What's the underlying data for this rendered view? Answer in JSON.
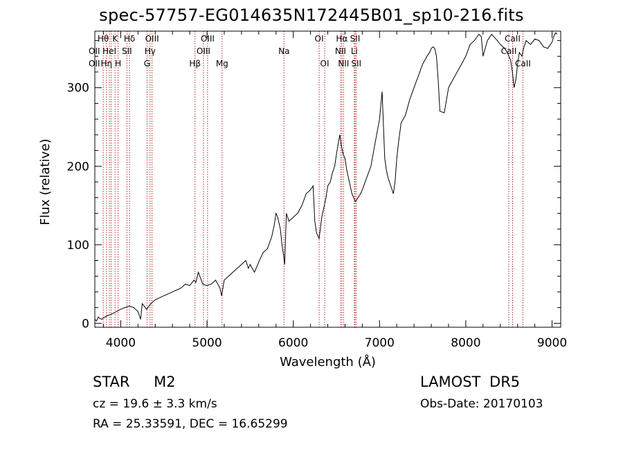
{
  "header": {
    "title": "spec-57757-EG014635N172445B01_sp10-216.fits"
  },
  "info": {
    "object": "STAR    M2",
    "survey": "LAMOST  DR5",
    "cz": "cz = 19.6 ± 3.3 km/s",
    "obs_date": "Obs-Date: 20170103",
    "radec": "RA =  25.33591, DEC =  16.65299"
  },
  "chart_data": {
    "type": "line",
    "title": "spec-57757-EG014635N172445B01_sp10-216.fits",
    "xlabel": "Wavelength (Å)",
    "ylabel": "Flux (relative)",
    "xlim": [
      3700,
      9100
    ],
    "ylim": [
      -5,
      372
    ],
    "xticks": [
      4000,
      5000,
      6000,
      7000,
      8000,
      9000
    ],
    "yticks": [
      0,
      100,
      200,
      300
    ],
    "grid": false,
    "line_color": "#000000",
    "marker_color": "#b22222",
    "series": [
      {
        "x": [
          3700,
          3720,
          3740,
          3760,
          3780,
          3800,
          3850,
          3900,
          3950,
          4000,
          4050,
          4100,
          4150,
          4200,
          4230,
          4250,
          4300,
          4350,
          4400,
          4500,
          4600,
          4700,
          4750,
          4800,
          4850,
          4870,
          4900,
          4950,
          5000,
          5050,
          5100,
          5150,
          5170,
          5200,
          5250,
          5300,
          5350,
          5400,
          5450,
          5480,
          5500,
          5550,
          5600,
          5650,
          5700,
          5750,
          5780,
          5800,
          5820,
          5850,
          5870,
          5890,
          5900,
          5920,
          5950,
          6000,
          6050,
          6100,
          6150,
          6200,
          6230,
          6250,
          6270,
          6300,
          6330,
          6380,
          6400,
          6430,
          6450,
          6480,
          6500,
          6520,
          6540,
          6560,
          6580,
          6600,
          6620,
          6650,
          6680,
          6700,
          6720,
          6740,
          6780,
          6800,
          6850,
          6900,
          6950,
          7000,
          7030,
          7060,
          7080,
          7100,
          7130,
          7160,
          7180,
          7200,
          7220,
          7250,
          7300,
          7350,
          7400,
          7450,
          7500,
          7550,
          7580,
          7600,
          7620,
          7640,
          7660,
          7680,
          7700,
          7750,
          7800,
          7850,
          7900,
          7950,
          8000,
          8050,
          8100,
          8150,
          8180,
          8200,
          8250,
          8300,
          8350,
          8400,
          8450,
          8480,
          8500,
          8520,
          8540,
          8560,
          8580,
          8600,
          8620,
          8650,
          8670,
          8700,
          8750,
          8800,
          8850,
          8900,
          8950,
          9000,
          9020,
          9040,
          9060
        ],
        "y": [
          5,
          3,
          8,
          6,
          5,
          7,
          10,
          12,
          15,
          18,
          20,
          22,
          20,
          15,
          5,
          25,
          18,
          25,
          30,
          35,
          40,
          45,
          50,
          48,
          55,
          52,
          65,
          50,
          48,
          50,
          55,
          45,
          35,
          55,
          60,
          65,
          70,
          75,
          80,
          70,
          75,
          65,
          78,
          90,
          95,
          110,
          125,
          140,
          135,
          120,
          100,
          85,
          75,
          140,
          130,
          135,
          140,
          150,
          165,
          170,
          175,
          130,
          115,
          108,
          135,
          160,
          175,
          180,
          190,
          200,
          215,
          228,
          240,
          225,
          215,
          210,
          195,
          180,
          165,
          160,
          155,
          158,
          165,
          170,
          185,
          200,
          230,
          260,
          295,
          210,
          195,
          185,
          175,
          165,
          180,
          210,
          230,
          255,
          265,
          285,
          300,
          315,
          330,
          340,
          345,
          350,
          352,
          350,
          340,
          310,
          270,
          268,
          300,
          310,
          320,
          330,
          340,
          355,
          360,
          368,
          365,
          340,
          360,
          368,
          362,
          355,
          350,
          345,
          340,
          335,
          320,
          300,
          310,
          330,
          345,
          340,
          350,
          360,
          355,
          362,
          360,
          352,
          350,
          358,
          365,
          370,
          368
        ]
      }
    ],
    "line_markers": [
      {
        "wl": 3797,
        "row": 0,
        "label": "Hθ"
      },
      {
        "wl": 3835,
        "row": 2,
        "label": "Hη"
      },
      {
        "wl": 3869,
        "row": 1,
        "label": "HeI"
      },
      {
        "wl": 3889,
        "row": 1,
        "label": ""
      },
      {
        "wl": 3934,
        "row": 0,
        "label": "K"
      },
      {
        "wl": 3970,
        "row": 2,
        "label": "H"
      },
      {
        "wl": 4072,
        "row": 1,
        "label": "SII"
      },
      {
        "wl": 4102,
        "row": 0,
        "label": "Hδ"
      },
      {
        "wl": 4305,
        "row": 2,
        "label": "G"
      },
      {
        "wl": 4340,
        "row": 1,
        "label": "Hγ"
      },
      {
        "wl": 4363,
        "row": 0,
        "label": "OIII"
      },
      {
        "wl": 4861,
        "row": 2,
        "label": "Hβ"
      },
      {
        "wl": 4959,
        "row": 1,
        "label": "OIII"
      },
      {
        "wl": 5007,
        "row": 0,
        "label": "OIII"
      },
      {
        "wl": 5175,
        "row": 2,
        "label": "Mg"
      },
      {
        "wl": 5893,
        "row": 1,
        "label": "Na"
      },
      {
        "wl": 6300,
        "row": 0,
        "label": "OI"
      },
      {
        "wl": 6364,
        "row": 2,
        "label": "OI"
      },
      {
        "wl": 6548,
        "row": 1,
        "label": "NII"
      },
      {
        "wl": 6563,
        "row": 0,
        "label": "Hα"
      },
      {
        "wl": 6583,
        "row": 2,
        "label": "NII"
      },
      {
        "wl": 6708,
        "row": 1,
        "label": "Li"
      },
      {
        "wl": 6717,
        "row": 0,
        "label": "SII"
      },
      {
        "wl": 6731,
        "row": 2,
        "label": "SII"
      },
      {
        "wl": 8498,
        "row": 1,
        "label": "CaII"
      },
      {
        "wl": 8542,
        "row": 0,
        "label": "CaII"
      },
      {
        "wl": 8662,
        "row": 2,
        "label": "CaII"
      }
    ],
    "left_markers": [
      {
        "row": 1,
        "label": "OII"
      },
      {
        "row": 2,
        "label": "OII"
      }
    ]
  }
}
